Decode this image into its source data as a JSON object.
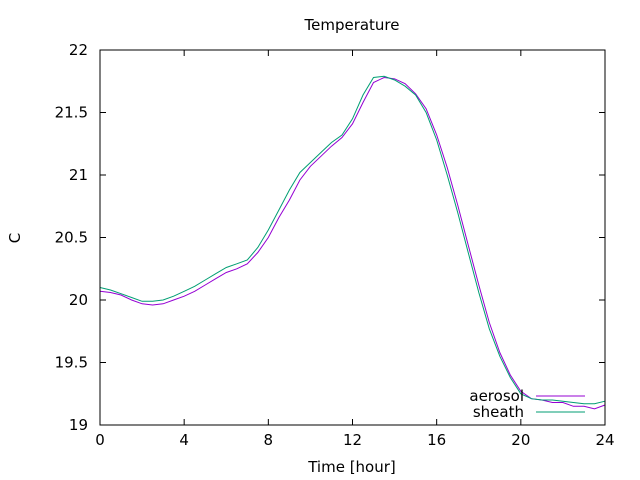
{
  "chart_data": {
    "type": "line",
    "title": "Temperature",
    "xlabel": "Time [hour]",
    "ylabel": "C",
    "xlim": [
      0,
      24
    ],
    "ylim": [
      19,
      22
    ],
    "x_ticks": [
      0,
      4,
      8,
      12,
      16,
      20,
      24
    ],
    "x_tick_labels": [
      "0",
      "4",
      "8",
      "12",
      "16",
      "20",
      "24"
    ],
    "y_ticks": [
      19,
      19.5,
      20,
      20.5,
      21,
      21.5,
      22
    ],
    "y_tick_labels": [
      "19",
      "19.5",
      "20",
      "20.5",
      "21",
      "21.5",
      "22"
    ],
    "grid": false,
    "legend_position": "bottom-right",
    "series": [
      {
        "name": "aerosol",
        "color": "#9400d3",
        "x": [
          0,
          0.5,
          1,
          1.5,
          2,
          2.5,
          3,
          3.5,
          4,
          4.5,
          5,
          5.5,
          6,
          6.5,
          7,
          7.5,
          8,
          8.5,
          9,
          9.5,
          10,
          10.5,
          11,
          11.5,
          12,
          12.5,
          13,
          13.5,
          14,
          14.5,
          15,
          15.5,
          16,
          16.5,
          17,
          17.5,
          18,
          18.5,
          19,
          19.5,
          20,
          20.5,
          21,
          21.5,
          22,
          22.5,
          23,
          23.5,
          24
        ],
        "y": [
          20.07,
          20.06,
          20.04,
          20.0,
          19.97,
          19.96,
          19.97,
          20.0,
          20.03,
          20.07,
          20.12,
          20.17,
          20.22,
          20.25,
          20.29,
          20.38,
          20.5,
          20.66,
          20.8,
          20.96,
          21.07,
          21.15,
          21.23,
          21.3,
          21.41,
          21.58,
          21.74,
          21.78,
          21.77,
          21.73,
          21.65,
          21.53,
          21.32,
          21.06,
          20.76,
          20.44,
          20.12,
          19.82,
          19.58,
          19.4,
          19.27,
          19.21,
          19.2,
          19.18,
          19.18,
          19.15,
          19.15,
          19.13,
          19.16
        ]
      },
      {
        "name": "sheath",
        "color": "#009e73",
        "x": [
          0,
          0.5,
          1,
          1.5,
          2,
          2.5,
          3,
          3.5,
          4,
          4.5,
          5,
          5.5,
          6,
          6.5,
          7,
          7.5,
          8,
          8.5,
          9,
          9.5,
          10,
          10.5,
          11,
          11.5,
          12,
          12.5,
          13,
          13.5,
          14,
          14.5,
          15,
          15.5,
          16,
          16.5,
          17,
          17.5,
          18,
          18.5,
          19,
          19.5,
          20,
          20.5,
          21,
          21.5,
          22,
          22.5,
          23,
          23.5,
          24
        ],
        "y": [
          20.1,
          20.08,
          20.05,
          20.02,
          19.99,
          19.99,
          20.0,
          20.03,
          20.07,
          20.11,
          20.16,
          20.21,
          20.26,
          20.29,
          20.32,
          20.42,
          20.56,
          20.72,
          20.88,
          21.02,
          21.1,
          21.18,
          21.26,
          21.32,
          21.45,
          21.64,
          21.78,
          21.79,
          21.76,
          21.71,
          21.64,
          21.5,
          21.28,
          21.0,
          20.7,
          20.38,
          20.06,
          19.77,
          19.55,
          19.38,
          19.25,
          19.21,
          19.2,
          19.2,
          19.19,
          19.18,
          19.17,
          19.17,
          19.19
        ]
      }
    ]
  }
}
